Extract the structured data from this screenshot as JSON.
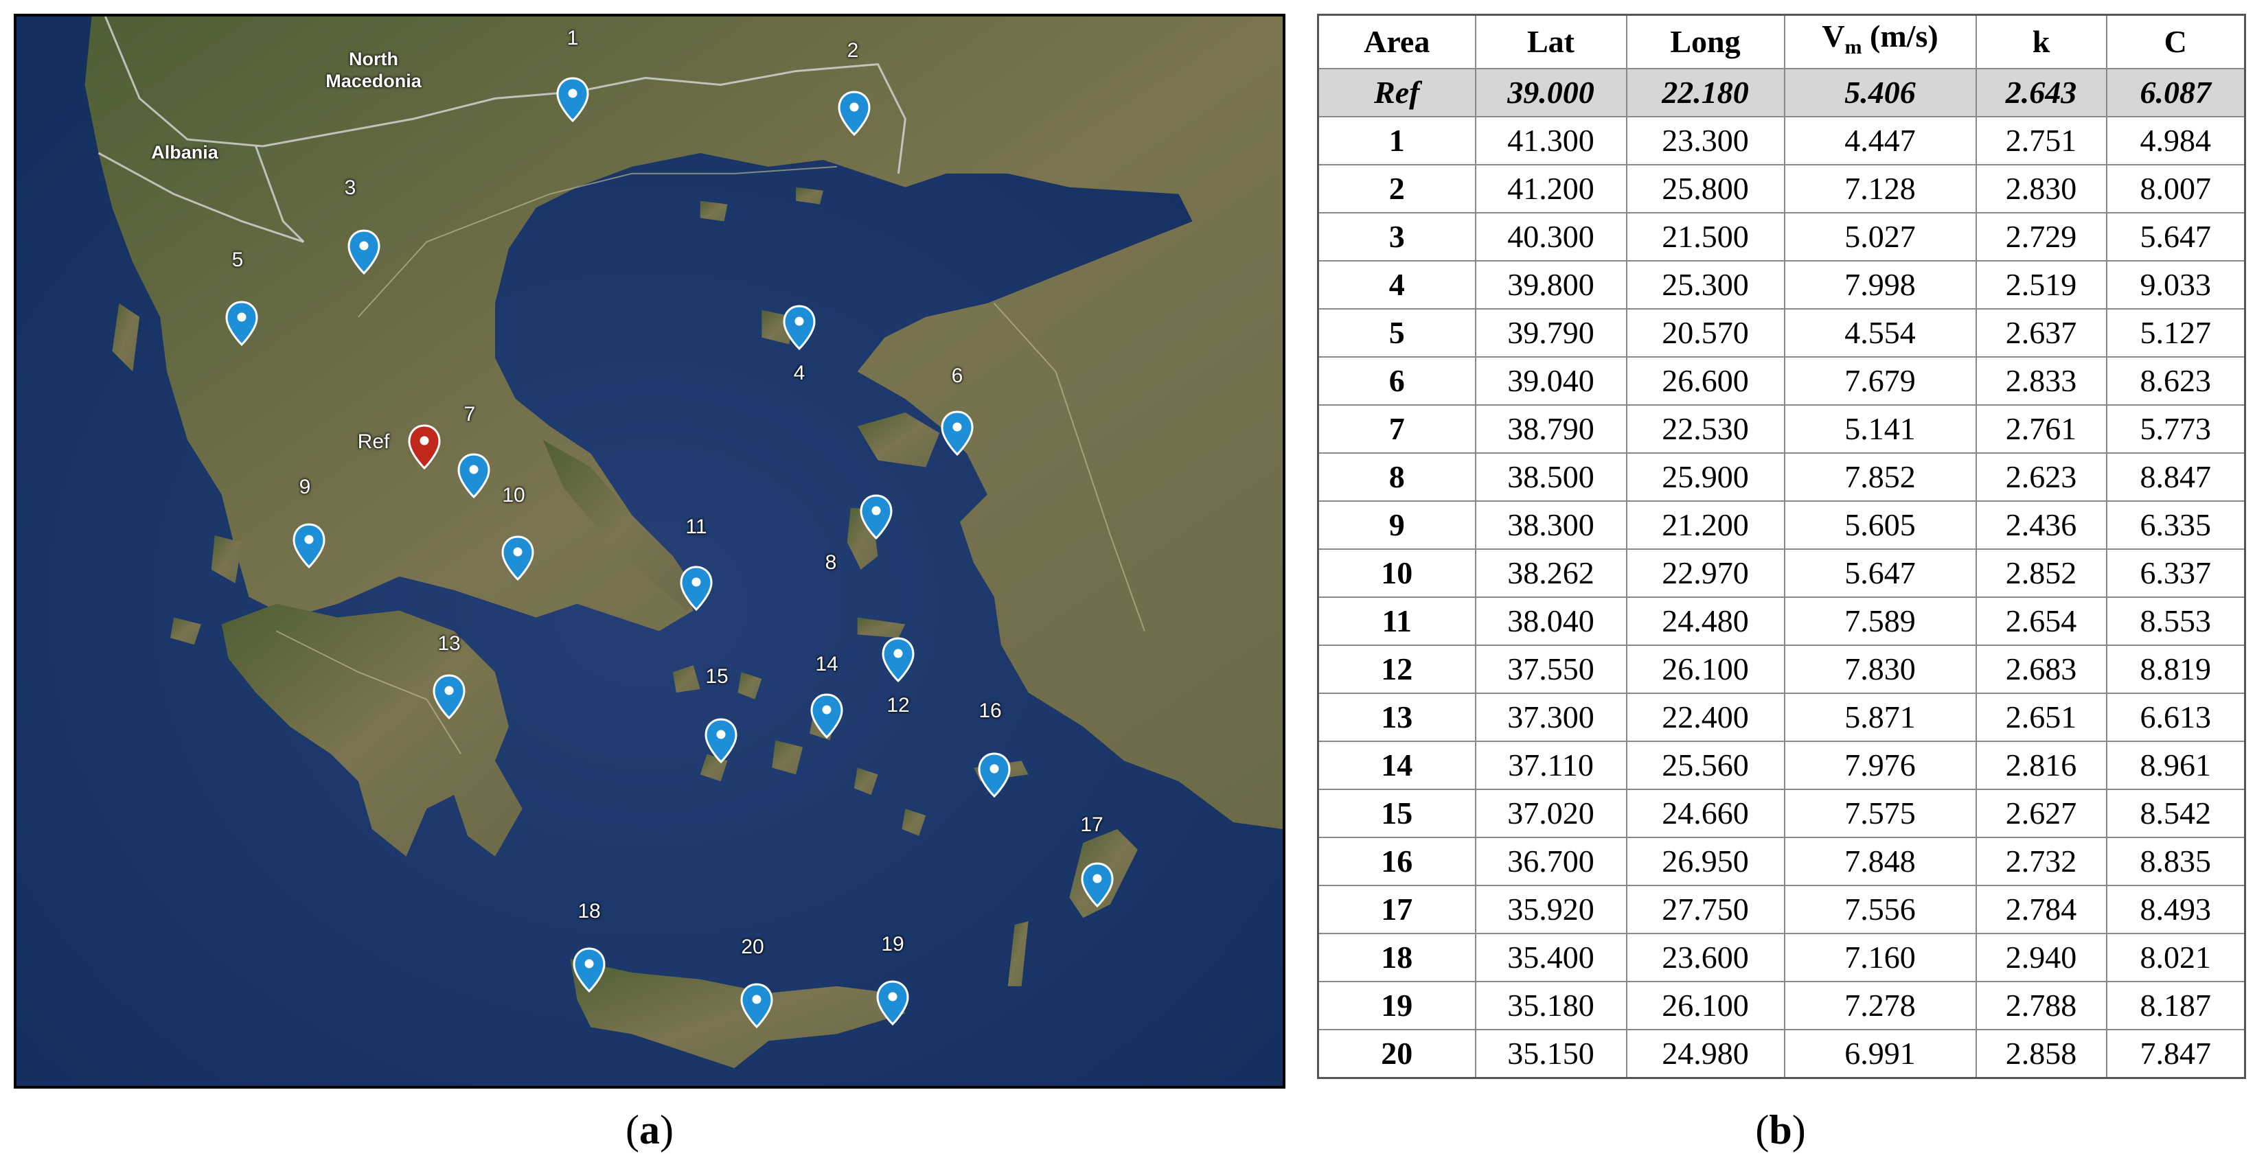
{
  "map": {
    "country_labels": [
      {
        "id": "north-macedonia",
        "line1": "North",
        "line2": "Macedonia"
      },
      {
        "id": "albania",
        "line1": "Albania",
        "line2": ""
      }
    ],
    "markers": [
      {
        "label": "1",
        "kind": "site"
      },
      {
        "label": "2",
        "kind": "site"
      },
      {
        "label": "3",
        "kind": "site"
      },
      {
        "label": "4",
        "kind": "site"
      },
      {
        "label": "5",
        "kind": "site"
      },
      {
        "label": "6",
        "kind": "site"
      },
      {
        "label": "7",
        "kind": "site"
      },
      {
        "label": "8",
        "kind": "site"
      },
      {
        "label": "9",
        "kind": "site"
      },
      {
        "label": "10",
        "kind": "site"
      },
      {
        "label": "11",
        "kind": "site"
      },
      {
        "label": "12",
        "kind": "site"
      },
      {
        "label": "13",
        "kind": "site"
      },
      {
        "label": "14",
        "kind": "site"
      },
      {
        "label": "15",
        "kind": "site"
      },
      {
        "label": "16",
        "kind": "site"
      },
      {
        "label": "17",
        "kind": "site"
      },
      {
        "label": "18",
        "kind": "site"
      },
      {
        "label": "19",
        "kind": "site"
      },
      {
        "label": "20",
        "kind": "site"
      },
      {
        "label": "Ref",
        "kind": "reference"
      }
    ],
    "colors": {
      "site_pin": "#1e8fd6",
      "reference_pin": "#c0281b",
      "sea": "#183a6b",
      "land": "#6f7048"
    }
  },
  "table": {
    "headers": [
      "Area",
      "Lat",
      "Long",
      "V",
      "k",
      "C"
    ],
    "header_v_sub": "m",
    "header_v_unit": " (m/s)",
    "ref_row": [
      "Ref",
      "39.000",
      "22.180",
      "5.406",
      "2.643",
      "6.087"
    ],
    "rows": [
      [
        "1",
        "41.300",
        "23.300",
        "4.447",
        "2.751",
        "4.984"
      ],
      [
        "2",
        "41.200",
        "25.800",
        "7.128",
        "2.830",
        "8.007"
      ],
      [
        "3",
        "40.300",
        "21.500",
        "5.027",
        "2.729",
        "5.647"
      ],
      [
        "4",
        "39.800",
        "25.300",
        "7.998",
        "2.519",
        "9.033"
      ],
      [
        "5",
        "39.790",
        "20.570",
        "4.554",
        "2.637",
        "5.127"
      ],
      [
        "6",
        "39.040",
        "26.600",
        "7.679",
        "2.833",
        "8.623"
      ],
      [
        "7",
        "38.790",
        "22.530",
        "5.141",
        "2.761",
        "5.773"
      ],
      [
        "8",
        "38.500",
        "25.900",
        "7.852",
        "2.623",
        "8.847"
      ],
      [
        "9",
        "38.300",
        "21.200",
        "5.605",
        "2.436",
        "6.335"
      ],
      [
        "10",
        "38.262",
        "22.970",
        "5.647",
        "2.852",
        "6.337"
      ],
      [
        "11",
        "38.040",
        "24.480",
        "7.589",
        "2.654",
        "8.553"
      ],
      [
        "12",
        "37.550",
        "26.100",
        "7.830",
        "2.683",
        "8.819"
      ],
      [
        "13",
        "37.300",
        "22.400",
        "5.871",
        "2.651",
        "6.613"
      ],
      [
        "14",
        "37.110",
        "25.560",
        "7.976",
        "2.816",
        "8.961"
      ],
      [
        "15",
        "37.020",
        "24.660",
        "7.575",
        "2.627",
        "8.542"
      ],
      [
        "16",
        "36.700",
        "26.950",
        "7.848",
        "2.732",
        "8.835"
      ],
      [
        "17",
        "35.920",
        "27.750",
        "7.556",
        "2.784",
        "8.493"
      ],
      [
        "18",
        "35.400",
        "23.600",
        "7.160",
        "2.940",
        "8.021"
      ],
      [
        "19",
        "35.180",
        "26.100",
        "7.278",
        "2.788",
        "8.187"
      ],
      [
        "20",
        "35.150",
        "24.980",
        "6.991",
        "2.858",
        "7.847"
      ]
    ]
  },
  "captions": {
    "a": "a",
    "b": "b"
  }
}
